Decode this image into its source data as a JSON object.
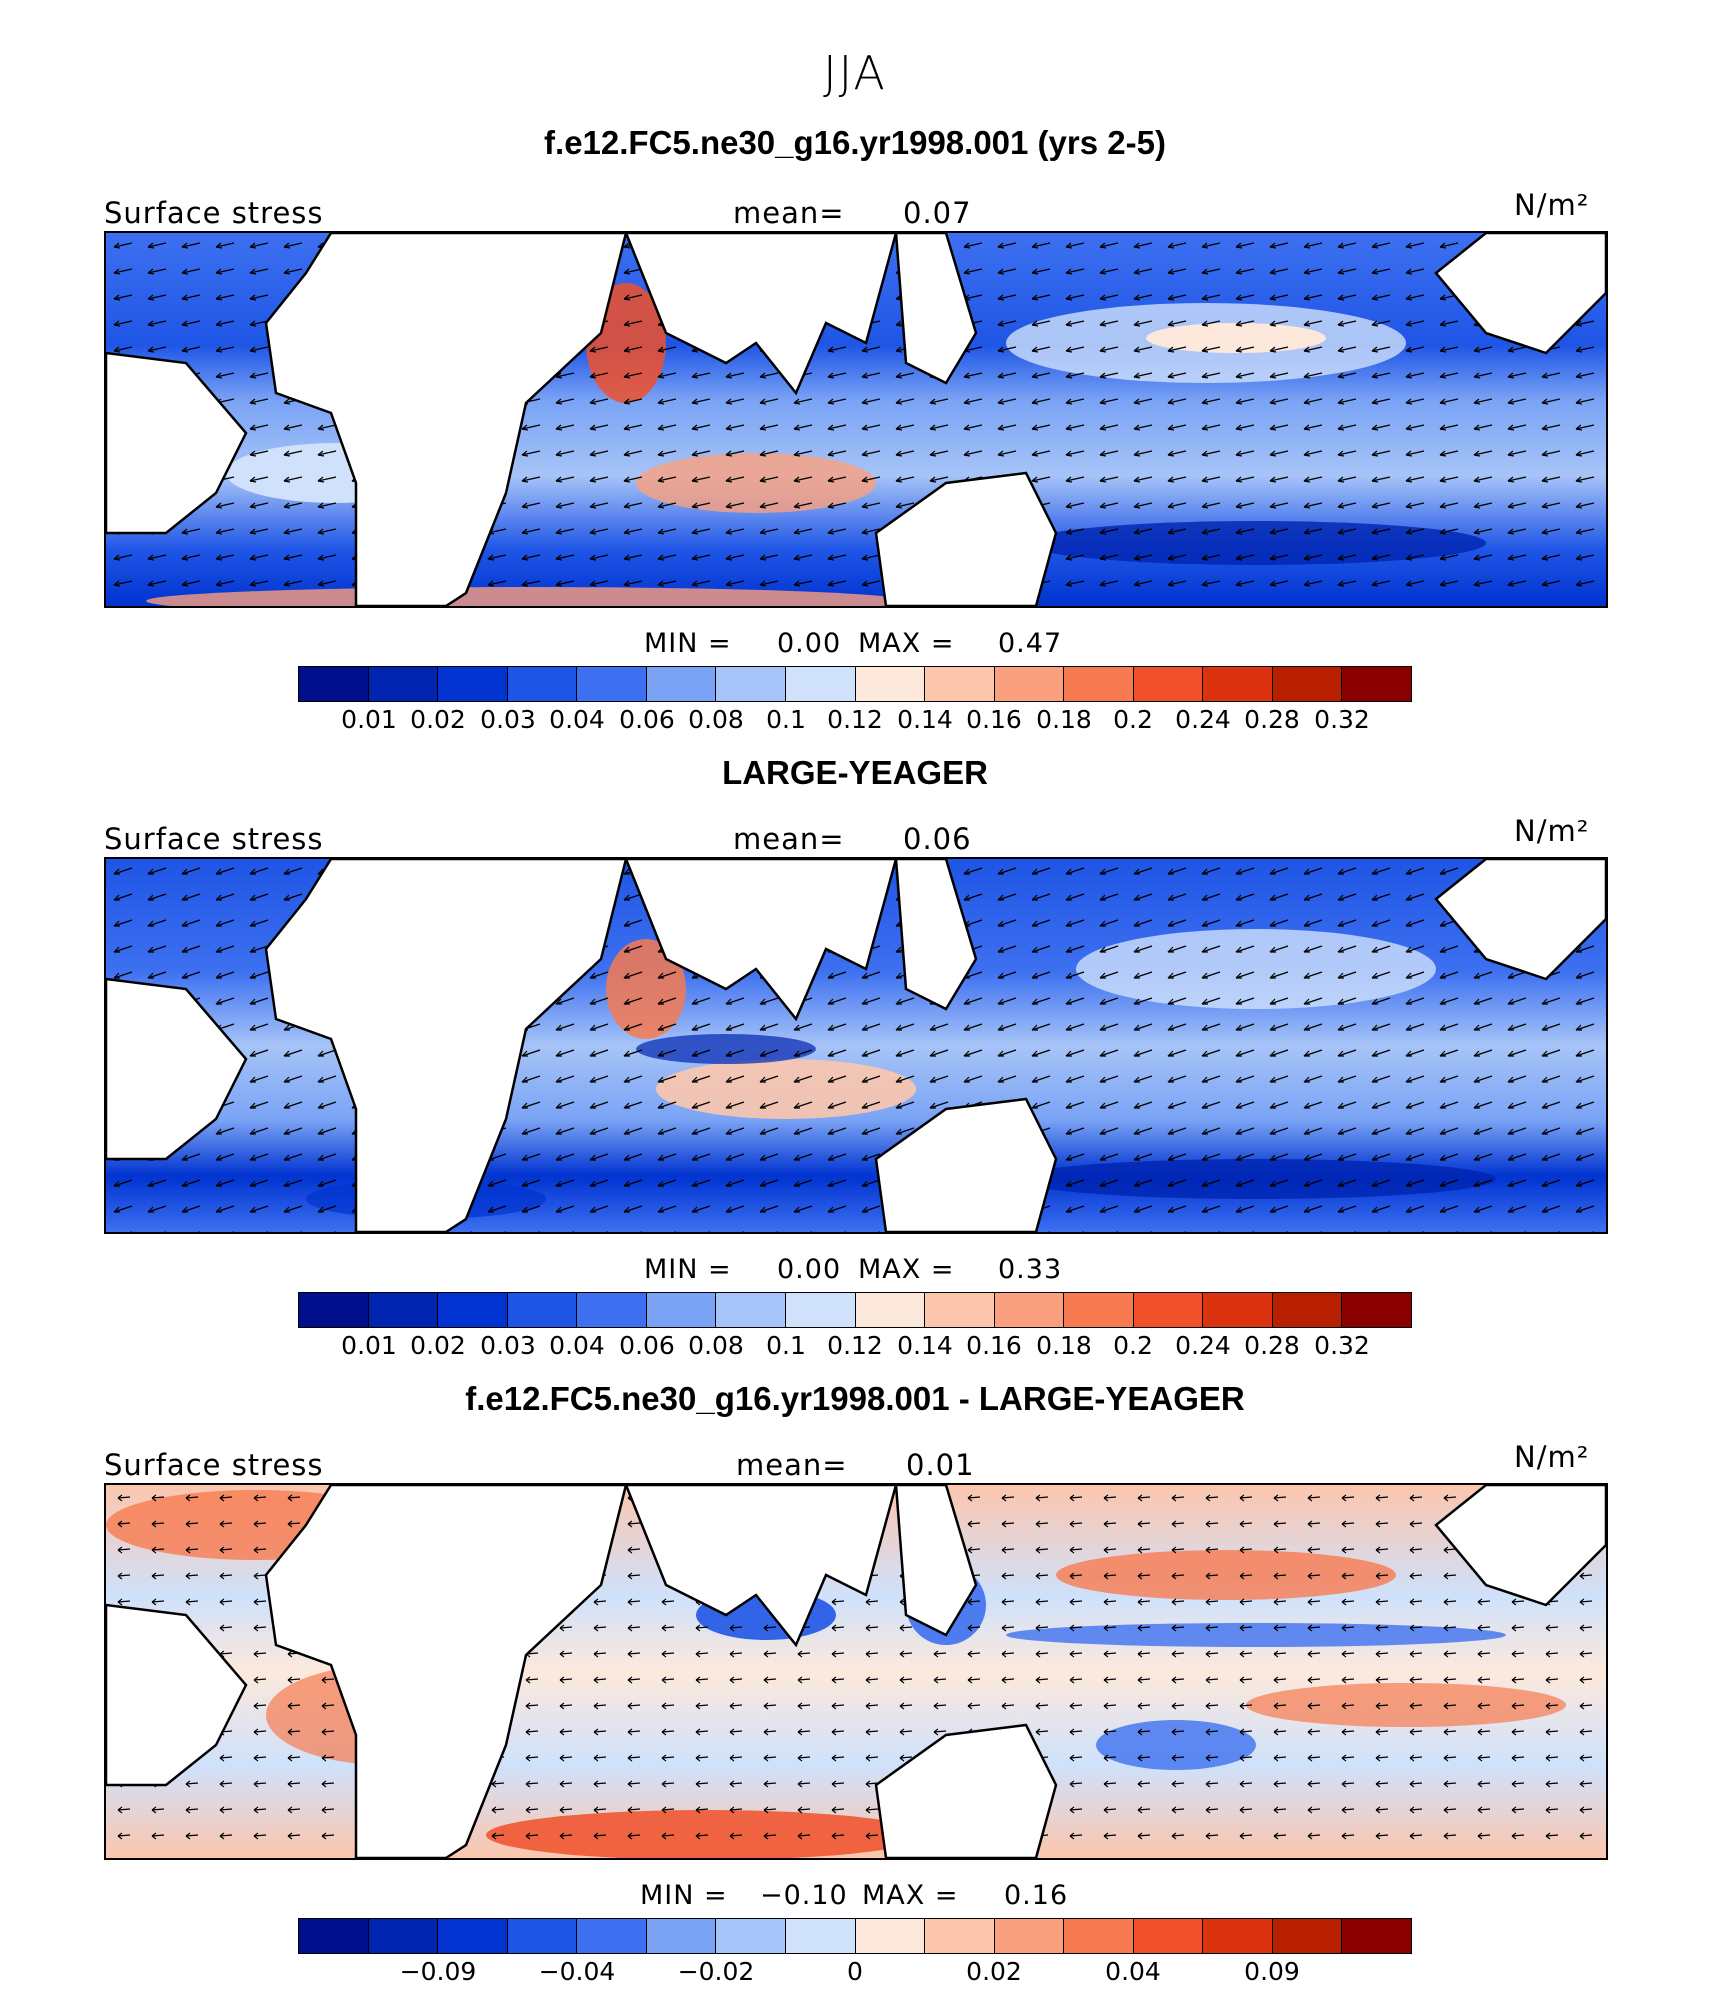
{
  "figure": {
    "title": "JJA"
  },
  "colors": {
    "blue_scale": [
      "#00108c",
      "#0024b0",
      "#0033d0",
      "#1f55e6",
      "#3d70f0",
      "#7aa3f5",
      "#a6c4f7",
      "#cfe1fb",
      "#fde9dc",
      "#fcc6ad",
      "#fba07e",
      "#f77a50",
      "#f0502a",
      "#dc3210",
      "#b81e00",
      "#8a0000"
    ],
    "land": "#ffffff",
    "vector": "#000000"
  },
  "panels": [
    {
      "title": "f.e12.FC5.ne30_g16.yr1998.001 (yrs 2-5)",
      "field_label": "Surface stress",
      "mean_label": "mean=",
      "mean_value": "0.07",
      "units": "N/m²",
      "min_label": "MIN =",
      "min_value": "0.00",
      "max_label": "MAX =",
      "max_value": "0.47",
      "colorbar_ticks": [
        "0.01",
        "0.02",
        "0.03",
        "0.04",
        "0.06",
        "0.08",
        "0.1",
        "0.12",
        "0.14",
        "0.16",
        "0.18",
        "0.2",
        "0.24",
        "0.28",
        "0.32"
      ]
    },
    {
      "title": "LARGE-YEAGER",
      "field_label": "Surface stress",
      "mean_label": "mean=",
      "mean_value": "0.06",
      "units": "N/m²",
      "min_label": "MIN =",
      "min_value": "0.00",
      "max_label": "MAX =",
      "max_value": "0.33",
      "colorbar_ticks": [
        "0.01",
        "0.02",
        "0.03",
        "0.04",
        "0.06",
        "0.08",
        "0.1",
        "0.12",
        "0.14",
        "0.16",
        "0.18",
        "0.2",
        "0.24",
        "0.28",
        "0.32"
      ]
    },
    {
      "title": "f.e12.FC5.ne30_g16.yr1998.001 - LARGE-YEAGER",
      "field_label": "Surface stress",
      "mean_label": "mean=",
      "mean_value": "0.01",
      "units": "N/m²",
      "min_label": "MIN =",
      "min_value": "−0.10",
      "max_label": "MAX =",
      "max_value": "0.16",
      "colorbar_ticks": [
        "−0.09",
        "−0.04",
        "−0.02",
        "0",
        "0.02",
        "0.04",
        "0.09"
      ]
    }
  ]
}
